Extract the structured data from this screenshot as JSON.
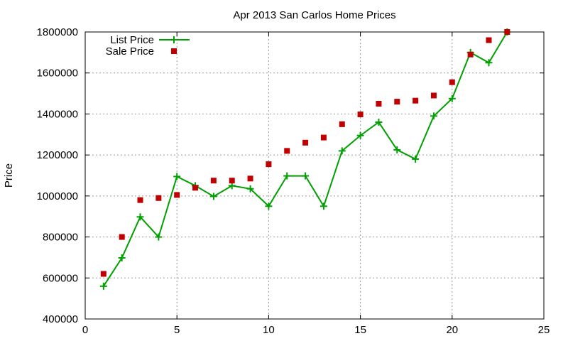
{
  "chart_data": {
    "type": "line",
    "title": "Apr 2013 San Carlos Home Prices",
    "xlabel": "",
    "ylabel": "Price",
    "xlim": [
      0,
      25
    ],
    "ylim": [
      400000,
      1800000
    ],
    "x_ticks": [
      0,
      5,
      10,
      15,
      20,
      25
    ],
    "x_tick_labels": [
      "0",
      "5",
      "10",
      "15",
      "20",
      "25"
    ],
    "y_ticks": [
      400000,
      600000,
      800000,
      1000000,
      1200000,
      1400000,
      1600000,
      1800000
    ],
    "y_tick_labels": [
      "400000",
      "600000",
      "800000",
      "1000000",
      "1200000",
      "1400000",
      "1600000",
      "1800000"
    ],
    "grid": true,
    "legend_position": "top-left",
    "x": [
      1,
      2,
      3,
      4,
      5,
      6,
      7,
      8,
      9,
      10,
      11,
      12,
      13,
      14,
      15,
      16,
      17,
      18,
      19,
      20,
      21,
      22,
      23
    ],
    "series": [
      {
        "name": "List Price",
        "type": "line",
        "marker": "plus",
        "color": "#00a000",
        "values": [
          560000,
          698000,
          898000,
          800000,
          1095000,
          1050000,
          998000,
          1050000,
          1035000,
          950000,
          1098000,
          1098000,
          950000,
          1220000,
          1295000,
          1360000,
          1225000,
          1180000,
          1390000,
          1475000,
          1700000,
          1650000,
          1800000
        ]
      },
      {
        "name": "Sale Price",
        "type": "scatter",
        "marker": "square",
        "color": "#c00000",
        "values": [
          620000,
          800000,
          980000,
          990000,
          1005000,
          1040000,
          1075000,
          1075000,
          1085000,
          1155000,
          1220000,
          1260000,
          1285000,
          1350000,
          1398000,
          1450000,
          1460000,
          1465000,
          1490000,
          1555000,
          1690000,
          1760000,
          1800000
        ]
      }
    ]
  }
}
